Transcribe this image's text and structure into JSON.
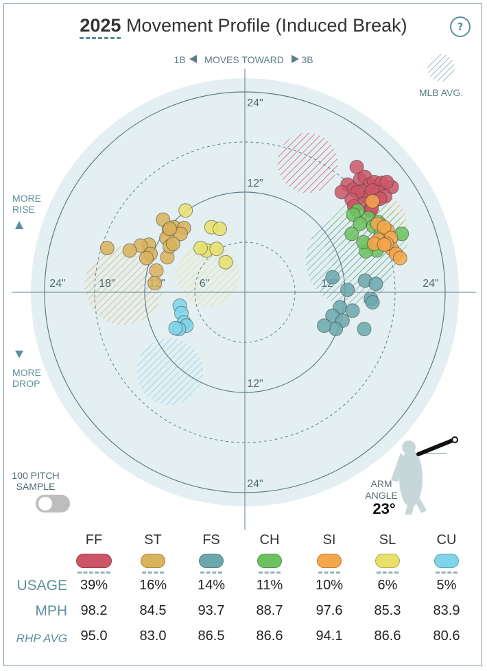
{
  "title": {
    "year": "2025",
    "rest": " Movement Profile (Induced Break)"
  },
  "help_label": "?",
  "direction": {
    "left": "1B",
    "middle": "MOVES TOWARD",
    "right": "3B"
  },
  "legend_avg": "MLB AVG.",
  "more_rise": [
    "MORE",
    "RISE"
  ],
  "more_drop": [
    "MORE",
    "DROP"
  ],
  "sample_toggle": {
    "label": [
      "100 PITCH",
      "SAMPLE"
    ],
    "on": false
  },
  "arm_angle": {
    "label": [
      "ARM",
      "ANGLE"
    ],
    "value": "23°"
  },
  "table": {
    "row_labels": {
      "usage": "USAGE",
      "mph": "MPH",
      "rhp": "RHP AVG"
    },
    "pitches": [
      {
        "code": "FF",
        "color": "#cc5566",
        "usage": "39%",
        "mph": "98.2",
        "rhp": "95.0"
      },
      {
        "code": "ST",
        "color": "#d9b25c",
        "usage": "16%",
        "mph": "84.5",
        "rhp": "83.0"
      },
      {
        "code": "FS",
        "color": "#6aa8ac",
        "usage": "14%",
        "mph": "93.7",
        "rhp": "86.5"
      },
      {
        "code": "CH",
        "color": "#6cc25f",
        "usage": "11%",
        "mph": "88.7",
        "rhp": "86.6"
      },
      {
        "code": "SI",
        "color": "#f4a64a",
        "usage": "10%",
        "mph": "97.6",
        "rhp": "94.1"
      },
      {
        "code": "SL",
        "color": "#e8e06a",
        "usage": "6%",
        "mph": "85.3",
        "rhp": "86.6"
      },
      {
        "code": "CU",
        "color": "#7fd3ea",
        "usage": "5%",
        "mph": "83.9",
        "rhp": "80.6"
      }
    ]
  },
  "chart_data": {
    "type": "scatter",
    "title": "2025 Movement Profile (Induced Break)",
    "xlabel": "1B ◀ MOVES TOWARD ▶ 3B",
    "ylabel": "MORE RISE / MORE DROP",
    "units": "inches",
    "xlim": [
      -24,
      24
    ],
    "ylim": [
      -24,
      24
    ],
    "ring_labels": [
      "24\"",
      "12\"",
      "12\"",
      "24\"",
      "24\"",
      "18\"",
      "12\"",
      "6\"",
      "12\"",
      "24\""
    ],
    "legend": "MLB AVG. (hatched regions)",
    "averages": [
      {
        "pitch": "FF",
        "x": 7.5,
        "y": 15.5,
        "r": 3.6,
        "color": "#cc5566"
      },
      {
        "pitch": "SI",
        "x": 15.7,
        "y": 8.2,
        "r": 3.7,
        "color": "#f4a64a"
      },
      {
        "pitch": "CH",
        "x": 14.5,
        "y": 6.3,
        "r": 5.0,
        "color": "#6cc25f"
      },
      {
        "pitch": "FS",
        "x": 12.6,
        "y": 3.8,
        "r": 5.3,
        "color": "#6aa8ac"
      },
      {
        "pitch": "SL",
        "x": -4.4,
        "y": 2.1,
        "r": 3.8,
        "color": "#e8e06a"
      },
      {
        "pitch": "ST",
        "x": -14.5,
        "y": 0.8,
        "r": 4.7,
        "color": "#d9b25c"
      },
      {
        "pitch": "CU",
        "x": -9.0,
        "y": -9.5,
        "r": 4.0,
        "color": "#7fd3ea"
      }
    ],
    "series": [
      {
        "name": "FF",
        "color": "#cc5566",
        "points": [
          [
            13.4,
            15.0
          ],
          [
            13.8,
            13.5
          ],
          [
            14.4,
            13.8
          ],
          [
            15.0,
            12.9
          ],
          [
            12.3,
            12.9
          ],
          [
            13.0,
            12.3
          ],
          [
            14.0,
            12.1
          ],
          [
            15.5,
            13.2
          ],
          [
            16.4,
            13.1
          ],
          [
            17.6,
            12.6
          ],
          [
            17.0,
            13.2
          ],
          [
            14.6,
            11.4
          ],
          [
            16.0,
            12.0
          ],
          [
            15.5,
            11.0
          ],
          [
            13.5,
            12.0
          ],
          [
            11.6,
            12.0
          ],
          [
            14.3,
            10.6
          ],
          [
            15.0,
            9.8
          ],
          [
            16.8,
            11.5
          ],
          [
            15.3,
            12.2
          ],
          [
            16.2,
            11.2
          ],
          [
            12.8,
            11.1
          ],
          [
            13.1,
            10.3
          ],
          [
            15.2,
            10.0
          ]
        ]
      },
      {
        "name": "ST",
        "color": "#d9b25c",
        "points": [
          [
            -9.8,
            8.7
          ],
          [
            -9.1,
            7.5
          ],
          [
            -8.5,
            7.8
          ],
          [
            -7.3,
            7.7
          ],
          [
            -9.4,
            6.5
          ],
          [
            -11.5,
            5.7
          ],
          [
            -12.5,
            5.6
          ],
          [
            -13.8,
            5.0
          ],
          [
            -16.5,
            5.3
          ],
          [
            -11.3,
            4.6
          ],
          [
            -9.3,
            4.2
          ],
          [
            -11.8,
            4.1
          ],
          [
            -9.0,
            5.5
          ],
          [
            -7.7,
            7.0
          ],
          [
            -10.6,
            2.6
          ],
          [
            -10.8,
            1.1
          ],
          [
            -9.0,
            7.6
          ],
          [
            -8.6,
            5.8
          ]
        ]
      },
      {
        "name": "FS",
        "color": "#6aa8ac",
        "points": [
          [
            10.5,
            1.8
          ],
          [
            12.3,
            0.3
          ],
          [
            14.4,
            1.4
          ],
          [
            15.7,
            1.0
          ],
          [
            15.1,
            -0.8
          ],
          [
            15.3,
            -1.2
          ],
          [
            11.4,
            -1.8
          ],
          [
            10.5,
            -2.8
          ],
          [
            11.7,
            -3.4
          ],
          [
            12.9,
            -2.2
          ],
          [
            10.9,
            -4.4
          ],
          [
            9.5,
            -4.0
          ],
          [
            14.3,
            -4.4
          ]
        ]
      },
      {
        "name": "CH",
        "color": "#6cc25f",
        "points": [
          [
            13.5,
            9.8
          ],
          [
            13.0,
            9.3
          ],
          [
            14.8,
            8.9
          ],
          [
            13.8,
            8.2
          ],
          [
            15.4,
            7.9
          ],
          [
            16.3,
            7.0
          ],
          [
            12.8,
            7.0
          ],
          [
            18.8,
            7.0
          ],
          [
            15.3,
            5.7
          ],
          [
            15.8,
            5.0
          ],
          [
            14.5,
            4.9
          ],
          [
            14.2,
            6.0
          ],
          [
            16.0,
            8.4
          ]
        ]
      },
      {
        "name": "SI",
        "color": "#f4a64a",
        "points": [
          [
            15.3,
            10.9
          ],
          [
            15.9,
            8.2
          ],
          [
            17.1,
            7.4
          ],
          [
            16.7,
            7.8
          ],
          [
            16.0,
            6.3
          ],
          [
            17.5,
            6.5
          ],
          [
            15.5,
            5.8
          ],
          [
            17.6,
            5.2
          ],
          [
            18.1,
            4.6
          ],
          [
            18.6,
            4.1
          ],
          [
            17.0,
            5.8
          ],
          [
            16.7,
            5.7
          ]
        ]
      },
      {
        "name": "SL",
        "color": "#e8e06a",
        "points": [
          [
            -7.1,
            9.8
          ],
          [
            -4.0,
            7.8
          ],
          [
            -3.0,
            7.6
          ],
          [
            -4.6,
            5.0
          ],
          [
            -2.3,
            3.6
          ],
          [
            -5.3,
            5.3
          ],
          [
            -3.4,
            5.2
          ]
        ]
      },
      {
        "name": "CU",
        "color": "#7fd3ea",
        "points": [
          [
            -7.8,
            -1.6
          ],
          [
            -7.6,
            -2.5
          ],
          [
            -7.3,
            -3.6
          ],
          [
            -7.0,
            -4.0
          ],
          [
            -7.9,
            -4.4
          ],
          [
            -8.3,
            -4.3
          ]
        ]
      }
    ]
  }
}
